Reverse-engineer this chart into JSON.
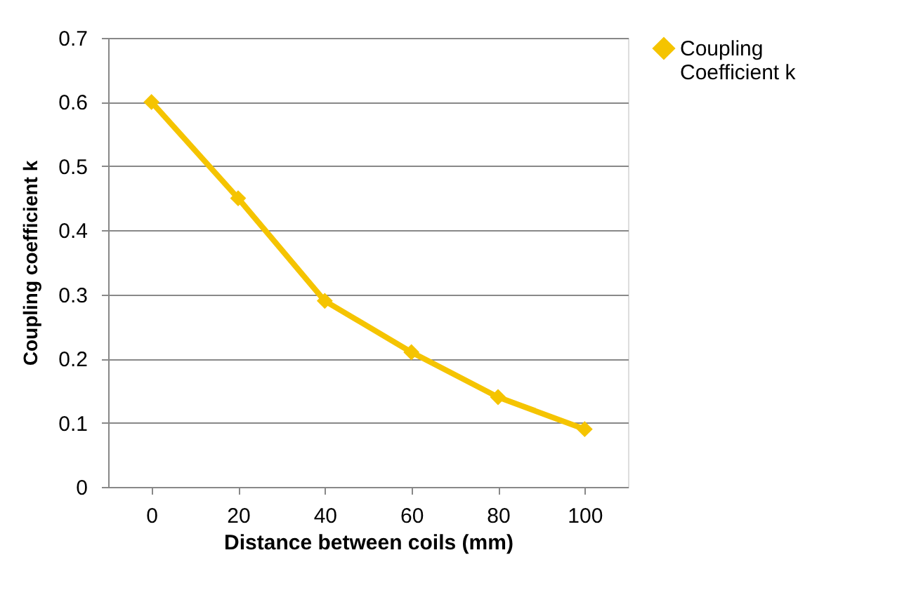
{
  "chart_data": {
    "type": "line",
    "xlabel": "Distance between coils (mm)",
    "ylabel": "Coupling coefficient k",
    "categories": [
      "0",
      "20",
      "40",
      "60",
      "80",
      "100"
    ],
    "series": [
      {
        "name": "Coupling Coefficient k",
        "color": "#f5c400",
        "values": [
          0.6,
          0.45,
          0.29,
          0.21,
          0.14,
          0.09
        ]
      }
    ],
    "ylim": [
      0,
      0.7
    ],
    "yticks": [
      0,
      0.1,
      0.2,
      0.3,
      0.4,
      0.5,
      0.6,
      0.7
    ],
    "grid": "y",
    "legend": "right",
    "marker": "diamond",
    "line_style": "solid"
  }
}
